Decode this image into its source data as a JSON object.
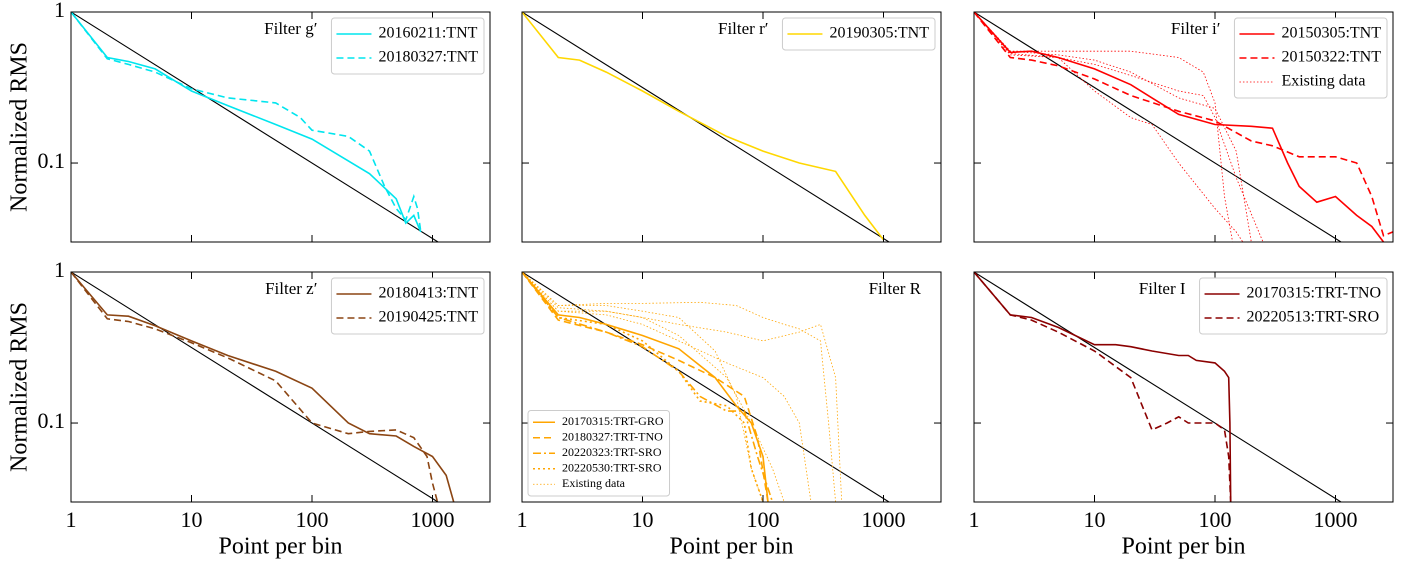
{
  "chart_data": [
    {
      "type": "line",
      "annotation": "Filter g′",
      "ylabel": "Normalized RMS",
      "xscale": "log",
      "yscale": "log",
      "xlim": [
        1,
        3000
      ],
      "ylim": [
        0.03,
        1
      ],
      "xticks": [
        1,
        10,
        100,
        1000
      ],
      "yticks": [
        0.1,
        1
      ],
      "show_xtick_labels": false,
      "show_ytick_labels": true,
      "legend": "upper right",
      "reference": {
        "color": "#000000",
        "x": [
          1,
          1111
        ],
        "values": [
          1,
          0.03
        ]
      },
      "series": [
        {
          "name": "20160211:TNT",
          "color": "#00e5ee",
          "dash": "solid",
          "x": [
            1,
            2,
            3,
            5,
            10,
            20,
            50,
            100,
            300,
            500,
            600,
            700,
            800
          ],
          "values": [
            1,
            0.5,
            0.47,
            0.42,
            0.3,
            0.24,
            0.18,
            0.144,
            0.085,
            0.058,
            0.04,
            0.045,
            0.035
          ]
        },
        {
          "name": "20180327:TNT",
          "color": "#00e5ee",
          "dash": "dashed",
          "x": [
            1,
            2,
            3,
            5,
            10,
            20,
            50,
            80,
            100,
            200,
            300,
            400,
            500,
            600,
            700,
            750,
            800
          ],
          "values": [
            1,
            0.49,
            0.45,
            0.4,
            0.31,
            0.27,
            0.25,
            0.2,
            0.165,
            0.15,
            0.12,
            0.07,
            0.05,
            0.042,
            0.06,
            0.05,
            0.035
          ]
        }
      ]
    },
    {
      "type": "line",
      "annotation": "Filter r′",
      "xscale": "log",
      "yscale": "log",
      "xlim": [
        1,
        3000
      ],
      "ylim": [
        0.03,
        1
      ],
      "xticks": [
        1,
        10,
        100,
        1000
      ],
      "yticks": [
        0.1,
        1
      ],
      "show_xtick_labels": false,
      "show_ytick_labels": false,
      "legend": "upper right",
      "reference": {
        "color": "#000000",
        "x": [
          1,
          1111
        ],
        "values": [
          1,
          0.03
        ]
      },
      "series": [
        {
          "name": "20190305:TNT",
          "color": "#ffd700",
          "dash": "solid",
          "x": [
            1,
            2,
            3,
            5,
            10,
            20,
            50,
            100,
            200,
            400,
            700,
            1000
          ],
          "values": [
            1,
            0.5,
            0.48,
            0.4,
            0.3,
            0.22,
            0.15,
            0.12,
            0.1,
            0.088,
            0.045,
            0.031
          ]
        }
      ]
    },
    {
      "type": "line",
      "annotation": "Filter i′",
      "xscale": "log",
      "yscale": "log",
      "xlim": [
        1,
        3000
      ],
      "ylim": [
        0.03,
        1
      ],
      "xticks": [
        1,
        10,
        100,
        1000
      ],
      "yticks": [
        0.1,
        1
      ],
      "show_xtick_labels": false,
      "show_ytick_labels": false,
      "legend": "upper right",
      "reference": {
        "color": "#000000",
        "x": [
          1,
          1111
        ],
        "values": [
          1,
          0.03
        ]
      },
      "series": [
        {
          "name": "20150305:TNT",
          "color": "#ff0000",
          "dash": "solid",
          "x": [
            1,
            2,
            3,
            5,
            10,
            20,
            30,
            50,
            100,
            200,
            300,
            400,
            500,
            700,
            1000,
            1500,
            2000,
            2500
          ],
          "values": [
            1,
            0.54,
            0.55,
            0.5,
            0.42,
            0.33,
            0.27,
            0.21,
            0.18,
            0.175,
            0.17,
            0.1,
            0.07,
            0.055,
            0.06,
            0.045,
            0.038,
            0.03
          ]
        },
        {
          "name": "20150322:TNT",
          "color": "#ff0000",
          "dash": "dashed",
          "x": [
            1,
            2,
            3,
            5,
            10,
            20,
            50,
            100,
            200,
            300,
            500,
            1000,
            1500,
            2000,
            2500,
            3000
          ],
          "values": [
            1,
            0.5,
            0.48,
            0.44,
            0.36,
            0.28,
            0.22,
            0.19,
            0.14,
            0.13,
            0.11,
            0.11,
            0.1,
            0.06,
            0.033,
            0.035
          ]
        },
        {
          "name": "Existing data",
          "color": "#ff0000",
          "dash": "thin-dotted",
          "curves": [
            {
              "x": [
                1,
                2,
                5,
                10,
                20,
                50,
                80,
                100,
                120,
                140
              ],
              "values": [
                1,
                0.55,
                0.55,
                0.55,
                0.55,
                0.5,
                0.4,
                0.25,
                0.06,
                0.03
              ]
            },
            {
              "x": [
                1,
                2,
                5,
                10,
                20,
                30,
                50,
                100,
                150,
                170
              ],
              "values": [
                1,
                0.52,
                0.5,
                0.3,
                0.2,
                0.18,
                0.1,
                0.05,
                0.035,
                0.03
              ]
            },
            {
              "x": [
                1,
                2,
                5,
                10,
                20,
                50,
                80,
                100,
                150,
                250
              ],
              "values": [
                1,
                0.53,
                0.5,
                0.45,
                0.38,
                0.3,
                0.28,
                0.2,
                0.08,
                0.03
              ]
            },
            {
              "x": [
                1,
                2,
                5,
                10,
                20,
                50,
                100,
                150,
                200
              ],
              "values": [
                1,
                0.55,
                0.52,
                0.48,
                0.4,
                0.27,
                0.23,
                0.12,
                0.03
              ]
            }
          ]
        }
      ]
    },
    {
      "type": "line",
      "annotation": "Filter z′",
      "xlabel": "Point per bin",
      "ylabel": "Normalized RMS",
      "xscale": "log",
      "yscale": "log",
      "xlim": [
        1,
        3000
      ],
      "ylim": [
        0.03,
        1
      ],
      "xticks": [
        1,
        10,
        100,
        1000
      ],
      "yticks": [
        0.1,
        1
      ],
      "show_xtick_labels": true,
      "show_ytick_labels": true,
      "legend": "upper right",
      "reference": {
        "color": "#000000",
        "x": [
          1,
          1111
        ],
        "values": [
          1,
          0.03
        ]
      },
      "series": [
        {
          "name": "20180413:TNT",
          "color": "#8b4513",
          "dash": "solid",
          "x": [
            1,
            2,
            3,
            5,
            10,
            20,
            50,
            100,
            200,
            300,
            500,
            700,
            1000,
            1300,
            1500
          ],
          "values": [
            1,
            0.52,
            0.51,
            0.44,
            0.35,
            0.28,
            0.22,
            0.17,
            0.1,
            0.085,
            0.082,
            0.07,
            0.06,
            0.045,
            0.03
          ]
        },
        {
          "name": "20190425:TNT",
          "color": "#8b4513",
          "dash": "dashed",
          "x": [
            1,
            2,
            3,
            5,
            10,
            20,
            50,
            100,
            200,
            300,
            500,
            700,
            900,
            1000,
            1100
          ],
          "values": [
            1,
            0.49,
            0.47,
            0.42,
            0.34,
            0.27,
            0.19,
            0.1,
            0.085,
            0.088,
            0.09,
            0.08,
            0.06,
            0.04,
            0.03
          ]
        }
      ]
    },
    {
      "type": "line",
      "annotation": "Filter R",
      "xlabel": "Point per bin",
      "xscale": "log",
      "yscale": "log",
      "xlim": [
        1,
        3000
      ],
      "ylim": [
        0.03,
        1
      ],
      "xticks": [
        1,
        10,
        100,
        1000
      ],
      "yticks": [
        0.1,
        1
      ],
      "show_xtick_labels": true,
      "show_ytick_labels": false,
      "legend": "lower left",
      "reference": {
        "color": "#000000",
        "x": [
          1,
          1111
        ],
        "values": [
          1,
          0.03
        ]
      },
      "series": [
        {
          "name": "20170315:TRT-GRO",
          "color": "#ffa500",
          "dash": "solid",
          "x": [
            1,
            2,
            3,
            5,
            10,
            20,
            40,
            60,
            80,
            100,
            110
          ],
          "values": [
            1,
            0.52,
            0.5,
            0.45,
            0.38,
            0.31,
            0.2,
            0.13,
            0.1,
            0.06,
            0.03
          ]
        },
        {
          "name": "20180327:TRT-TNO",
          "color": "#ffa500",
          "dash": "dashed",
          "x": [
            1,
            2,
            5,
            10,
            20,
            40,
            70,
            90,
            110
          ],
          "values": [
            1,
            0.48,
            0.4,
            0.33,
            0.26,
            0.2,
            0.15,
            0.08,
            0.03
          ]
        },
        {
          "name": "20220323:TRT-SRO",
          "color": "#ffa500",
          "dash": "dashdot",
          "x": [
            1,
            2,
            5,
            10,
            20,
            30,
            50,
            70,
            90,
            120
          ],
          "values": [
            1,
            0.5,
            0.4,
            0.32,
            0.22,
            0.15,
            0.12,
            0.12,
            0.06,
            0.03
          ]
        },
        {
          "name": "20220530:TRT-SRO",
          "color": "#ffa500",
          "dash": "dotted",
          "x": [
            1,
            2,
            5,
            10,
            20,
            30,
            50,
            70,
            80,
            100
          ],
          "values": [
            1,
            0.5,
            0.45,
            0.35,
            0.22,
            0.14,
            0.13,
            0.1,
            0.05,
            0.03
          ]
        },
        {
          "name": "Existing data",
          "color": "#ffa500",
          "dash": "thin-dotted",
          "curves": [
            {
              "x": [
                1,
                2,
                5,
                10,
                30,
                60,
                100,
                150,
                200,
                300,
                350,
                400
              ],
              "values": [
                1,
                0.6,
                0.62,
                0.62,
                0.63,
                0.6,
                0.5,
                0.45,
                0.42,
                0.35,
                0.1,
                0.03
              ]
            },
            {
              "x": [
                1,
                2,
                5,
                10,
                20,
                50,
                100,
                200,
                300,
                400,
                450
              ],
              "values": [
                1,
                0.55,
                0.55,
                0.5,
                0.45,
                0.4,
                0.35,
                0.4,
                0.45,
                0.2,
                0.03
              ]
            },
            {
              "x": [
                1,
                2,
                5,
                10,
                20,
                50,
                100,
                150,
                200,
                250
              ],
              "values": [
                1,
                0.55,
                0.52,
                0.45,
                0.35,
                0.25,
                0.2,
                0.15,
                0.1,
                0.03
              ]
            },
            {
              "x": [
                1,
                2,
                5,
                10,
                20,
                40,
                60,
                80,
                100
              ],
              "values": [
                1,
                0.6,
                0.6,
                0.55,
                0.5,
                0.3,
                0.15,
                0.05,
                0.03
              ]
            },
            {
              "x": [
                1,
                2,
                5,
                10,
                20,
                50,
                80,
                120,
                150
              ],
              "values": [
                1,
                0.58,
                0.55,
                0.5,
                0.38,
                0.2,
                0.1,
                0.05,
                0.03
              ]
            }
          ]
        }
      ]
    },
    {
      "type": "line",
      "annotation": "Filter I",
      "xlabel": "Point per bin",
      "xscale": "log",
      "yscale": "log",
      "xlim": [
        1,
        3000
      ],
      "ylim": [
        0.03,
        1
      ],
      "xticks": [
        1,
        10,
        100,
        1000
      ],
      "yticks": [
        0.1,
        1
      ],
      "show_xtick_labels": true,
      "show_ytick_labels": false,
      "legend": "upper right",
      "reference": {
        "color": "#000000",
        "x": [
          1,
          1111
        ],
        "values": [
          1,
          0.03
        ]
      },
      "series": [
        {
          "name": "20170315:TRT-TNO",
          "color": "#8b0000",
          "dash": "solid",
          "x": [
            1,
            2,
            3,
            5,
            10,
            15,
            20,
            30,
            50,
            60,
            70,
            100,
            120,
            130,
            133,
            135
          ],
          "values": [
            1,
            0.52,
            0.5,
            0.43,
            0.33,
            0.33,
            0.32,
            0.3,
            0.28,
            0.28,
            0.26,
            0.25,
            0.22,
            0.2,
            0.1,
            0.03
          ]
        },
        {
          "name": "20220513:TRT-SRO",
          "color": "#8b0000",
          "dash": "dashed",
          "x": [
            1,
            2,
            3,
            5,
            10,
            20,
            30,
            40,
            50,
            60,
            80,
            100,
            120,
            130,
            135
          ],
          "values": [
            1,
            0.52,
            0.48,
            0.4,
            0.3,
            0.2,
            0.09,
            0.1,
            0.11,
            0.1,
            0.1,
            0.1,
            0.09,
            0.06,
            0.03
          ]
        }
      ]
    }
  ]
}
